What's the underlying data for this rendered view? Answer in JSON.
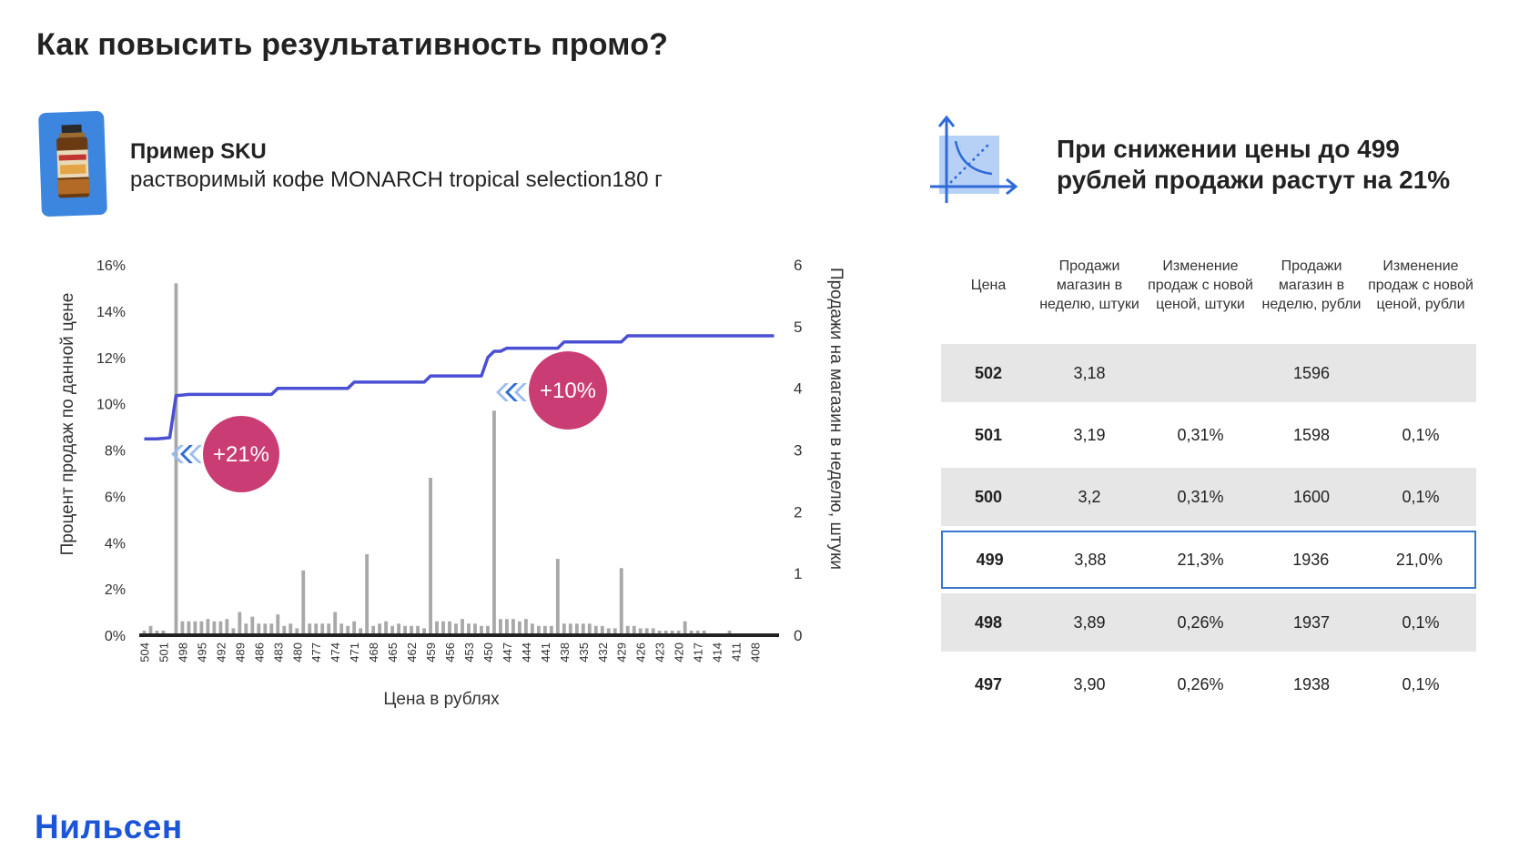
{
  "title": "Как повысить результативность промо?",
  "sku": {
    "label": "Пример SKU",
    "description": "растворимый кофе MONARCH tropical selection180 г"
  },
  "insight": {
    "line1": "При снижении цены до 499",
    "line2": "рублей продажи растут на 21%"
  },
  "brand": "Нильсен",
  "colors": {
    "line": "#4a4fd4",
    "bar": "#a8a8a8",
    "badge": "#c93d74",
    "accent": "#1c55d8",
    "highlight_border": "#3a76cc"
  },
  "chart_data": {
    "type": "bar",
    "xlabel": "Цена в рублях",
    "ylabel_left": "Процент продаж по данной цене",
    "ylabel_right": "Продажи на магазин в неделю, штуки",
    "left_ticks": [
      "0%",
      "2%",
      "4%",
      "6%",
      "8%",
      "10%",
      "12%",
      "14%",
      "16%"
    ],
    "right_ticks": [
      "0",
      "1",
      "2",
      "3",
      "4",
      "5",
      "6"
    ],
    "ylim_left": [
      0,
      16
    ],
    "ylim_right": [
      0,
      6
    ],
    "x_tick_labels": [
      "504",
      "501",
      "498",
      "495",
      "492",
      "489",
      "486",
      "483",
      "480",
      "477",
      "474",
      "471",
      "468",
      "465",
      "462",
      "459",
      "456",
      "453",
      "450",
      "447",
      "444",
      "441",
      "438",
      "435",
      "432",
      "429",
      "426",
      "423",
      "420",
      "417",
      "414",
      "411",
      "408"
    ],
    "categories": [
      "504",
      "503",
      "502",
      "501",
      "500",
      "499",
      "498",
      "497",
      "496",
      "495",
      "494",
      "493",
      "492",
      "491",
      "490",
      "489",
      "488",
      "487",
      "486",
      "485",
      "484",
      "483",
      "482",
      "481",
      "480",
      "479",
      "478",
      "477",
      "476",
      "475",
      "474",
      "473",
      "472",
      "471",
      "470",
      "469",
      "468",
      "467",
      "466",
      "465",
      "464",
      "463",
      "462",
      "461",
      "460",
      "459",
      "458",
      "457",
      "456",
      "455",
      "454",
      "453",
      "452",
      "451",
      "450",
      "449",
      "448",
      "447",
      "446",
      "445",
      "444",
      "443",
      "442",
      "441",
      "440",
      "439",
      "438",
      "437",
      "436",
      "435",
      "434",
      "433",
      "432",
      "431",
      "430",
      "429",
      "428",
      "427",
      "426",
      "425",
      "424",
      "423",
      "422",
      "421",
      "420",
      "419",
      "418",
      "417",
      "416",
      "415",
      "414",
      "413",
      "412",
      "411",
      "410",
      "409",
      "408",
      "407",
      "406",
      "405"
    ],
    "series": [
      {
        "name": "Процент продаж по данной цене",
        "axis": "left",
        "type": "bar",
        "values": [
          0.2,
          0.4,
          0.2,
          0.2,
          0.0,
          15.2,
          0.6,
          0.6,
          0.6,
          0.6,
          0.7,
          0.6,
          0.6,
          0.7,
          0.3,
          1.0,
          0.5,
          0.8,
          0.5,
          0.5,
          0.5,
          0.9,
          0.4,
          0.5,
          0.3,
          2.8,
          0.5,
          0.5,
          0.5,
          0.5,
          1.0,
          0.5,
          0.4,
          0.6,
          0.3,
          3.5,
          0.4,
          0.5,
          0.6,
          0.4,
          0.5,
          0.4,
          0.4,
          0.4,
          0.3,
          6.8,
          0.6,
          0.6,
          0.6,
          0.5,
          0.7,
          0.5,
          0.5,
          0.4,
          0.4,
          9.7,
          0.7,
          0.7,
          0.7,
          0.6,
          0.7,
          0.5,
          0.4,
          0.4,
          0.4,
          3.3,
          0.5,
          0.5,
          0.5,
          0.5,
          0.5,
          0.4,
          0.4,
          0.3,
          0.3,
          2.9,
          0.4,
          0.4,
          0.3,
          0.3,
          0.3,
          0.2,
          0.2,
          0.2,
          0.2,
          0.6,
          0.2,
          0.2,
          0.2,
          0.0,
          0.0,
          0.0,
          0.2,
          0.0,
          0.0,
          0.0,
          0.0,
          0.0,
          0.0,
          0.0
        ]
      },
      {
        "name": "Продажи на магазин в неделю, штуки",
        "axis": "right",
        "type": "line",
        "values": [
          3.18,
          3.18,
          3.18,
          3.19,
          3.2,
          3.88,
          3.89,
          3.9,
          3.9,
          3.9,
          3.9,
          3.9,
          3.9,
          3.9,
          3.9,
          3.9,
          3.9,
          3.9,
          3.9,
          3.9,
          3.9,
          4.0,
          4.0,
          4.0,
          4.0,
          4.0,
          4.0,
          4.0,
          4.0,
          4.0,
          4.0,
          4.0,
          4.0,
          4.1,
          4.1,
          4.1,
          4.1,
          4.1,
          4.1,
          4.1,
          4.1,
          4.1,
          4.1,
          4.1,
          4.1,
          4.2,
          4.2,
          4.2,
          4.2,
          4.2,
          4.2,
          4.2,
          4.2,
          4.2,
          4.5,
          4.6,
          4.6,
          4.65,
          4.65,
          4.65,
          4.65,
          4.65,
          4.65,
          4.65,
          4.65,
          4.65,
          4.75,
          4.75,
          4.75,
          4.75,
          4.75,
          4.75,
          4.75,
          4.75,
          4.75,
          4.75,
          4.85,
          4.85,
          4.85,
          4.85,
          4.85,
          4.85,
          4.85,
          4.85,
          4.85,
          4.85,
          4.85,
          4.85,
          4.85,
          4.85,
          4.85,
          4.85,
          4.85,
          4.85,
          4.85,
          4.85,
          4.85,
          4.85,
          4.85,
          4.85
        ]
      }
    ],
    "annotations": [
      {
        "text": "+21%",
        "at": "499"
      },
      {
        "text": "+10%",
        "at": "449"
      }
    ]
  },
  "table": {
    "headers": [
      "Цена",
      "Продажи магазин в неделю, штуки",
      "Изменение продаж с новой ценой, штуки",
      "Продажи магазин в неделю, рубли",
      "Изменение продаж с новой ценой, рубли"
    ],
    "rows": [
      {
        "price": "502",
        "units": "3,18",
        "units_change": "",
        "rub": "1596",
        "rub_change": ""
      },
      {
        "price": "501",
        "units": "3,19",
        "units_change": "0,31%",
        "rub": "1598",
        "rub_change": "0,1%"
      },
      {
        "price": "500",
        "units": "3,2",
        "units_change": "0,31%",
        "rub": "1600",
        "rub_change": "0,1%"
      },
      {
        "price": "499",
        "units": "3,88",
        "units_change": "21,3%",
        "rub": "1936",
        "rub_change": "21,0%"
      },
      {
        "price": "498",
        "units": "3,89",
        "units_change": "0,26%",
        "rub": "1937",
        "rub_change": "0,1%"
      },
      {
        "price": "497",
        "units": "3,90",
        "units_change": "0,26%",
        "rub": "1938",
        "rub_change": "0,1%"
      }
    ]
  }
}
